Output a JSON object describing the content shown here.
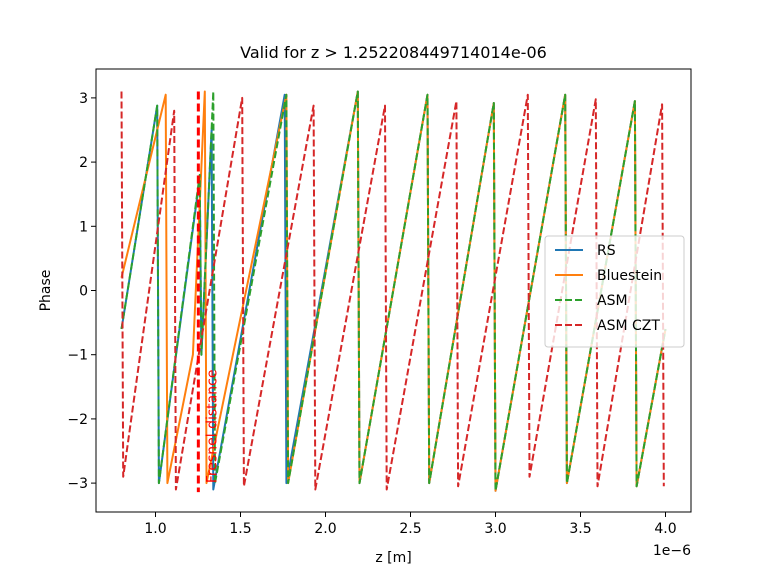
{
  "chart_data": {
    "type": "line",
    "title": "Valid for z > 1.252208449714014e-06",
    "xlabel": "z [m]",
    "ylabel": "Phase",
    "x_offset_label": "1e−6",
    "xlim": [
      0.65,
      4.15
    ],
    "ylim": [
      -3.45,
      3.45
    ],
    "x_ticks": [
      1.0,
      1.5,
      2.0,
      2.5,
      3.0,
      3.5,
      4.0
    ],
    "x_tick_labels": [
      "1.0",
      "1.5",
      "2.0",
      "2.5",
      "3.0",
      "3.5",
      "4.0"
    ],
    "y_ticks": [
      -3,
      -2,
      -1,
      0,
      1,
      2,
      3
    ],
    "y_tick_labels": [
      "−3",
      "−2",
      "−1",
      "0",
      "1",
      "2",
      "3"
    ],
    "grid": false,
    "legend_position": "center-right",
    "annotation": {
      "text": "Fresnel distance",
      "x": 1.252,
      "line_ymin": -3.14,
      "line_ymax": 3.1,
      "color": "#ff0000"
    },
    "series": [
      {
        "name": "RS",
        "color": "#1f77b4",
        "dash": "solid",
        "points": [
          [
            0.8,
            -0.6
          ],
          [
            1.01,
            2.88
          ],
          [
            1.02,
            -3.0
          ],
          [
            1.26,
            1.75
          ],
          [
            1.27,
            -1.0
          ],
          [
            1.33,
            2.5
          ],
          [
            1.34,
            -3.1
          ],
          [
            1.76,
            3.05
          ],
          [
            1.77,
            -3.0
          ],
          [
            2.19,
            3.1
          ],
          [
            2.2,
            -3.0
          ],
          [
            2.6,
            3.05
          ],
          [
            2.61,
            -3.0
          ],
          [
            2.99,
            2.92
          ],
          [
            3.0,
            -3.12
          ],
          [
            3.41,
            3.05
          ],
          [
            3.42,
            -3.0
          ],
          [
            3.82,
            2.95
          ],
          [
            3.83,
            -3.05
          ],
          [
            4.0,
            -0.6
          ]
        ]
      },
      {
        "name": "Bluestein",
        "color": "#ff7f0e",
        "dash": "solid",
        "points": [
          [
            0.8,
            0.2
          ],
          [
            1.06,
            3.05
          ],
          [
            1.07,
            -3.0
          ],
          [
            1.22,
            -1.0
          ],
          [
            1.29,
            3.1
          ],
          [
            1.3,
            -3.0
          ],
          [
            1.77,
            3.05
          ],
          [
            1.78,
            -3.0
          ],
          [
            2.19,
            3.1
          ],
          [
            2.2,
            -3.0
          ],
          [
            2.6,
            3.05
          ],
          [
            2.61,
            -3.0
          ],
          [
            2.99,
            2.92
          ],
          [
            3.0,
            -3.12
          ],
          [
            3.41,
            3.05
          ],
          [
            3.42,
            -3.0
          ],
          [
            3.82,
            2.95
          ],
          [
            3.83,
            -3.05
          ],
          [
            4.0,
            -0.6
          ]
        ]
      },
      {
        "name": "ASM",
        "color": "#2ca02c",
        "dash": "dashed",
        "points": [
          [
            0.8,
            -0.6
          ],
          [
            1.01,
            2.88
          ],
          [
            1.02,
            -3.0
          ],
          [
            1.26,
            1.8
          ],
          [
            1.27,
            -1.0
          ],
          [
            1.34,
            3.1
          ],
          [
            1.35,
            -3.0
          ],
          [
            1.77,
            3.05
          ],
          [
            1.78,
            -3.0
          ],
          [
            2.19,
            3.1
          ],
          [
            2.2,
            -3.0
          ],
          [
            2.6,
            3.05
          ],
          [
            2.61,
            -3.0
          ],
          [
            2.99,
            2.92
          ],
          [
            3.0,
            -3.12
          ],
          [
            3.41,
            3.05
          ],
          [
            3.42,
            -3.0
          ],
          [
            3.82,
            2.95
          ],
          [
            3.83,
            -3.05
          ],
          [
            4.0,
            -0.6
          ]
        ]
      },
      {
        "name": "ASM CZT",
        "color": "#d62728",
        "dash": "dashed",
        "points": [
          [
            0.8,
            3.1
          ],
          [
            0.81,
            -2.9
          ],
          [
            1.11,
            2.8
          ],
          [
            1.12,
            -3.1
          ],
          [
            1.51,
            3.0
          ],
          [
            1.52,
            -3.05
          ],
          [
            1.93,
            2.88
          ],
          [
            1.94,
            -3.1
          ],
          [
            2.35,
            2.88
          ],
          [
            2.36,
            -3.1
          ],
          [
            2.77,
            2.95
          ],
          [
            2.78,
            -3.05
          ],
          [
            3.19,
            3.05
          ],
          [
            3.2,
            -2.9
          ],
          [
            3.59,
            2.98
          ],
          [
            3.6,
            -3.05
          ],
          [
            3.98,
            2.9
          ],
          [
            3.99,
            -3.05
          ]
        ]
      }
    ]
  }
}
